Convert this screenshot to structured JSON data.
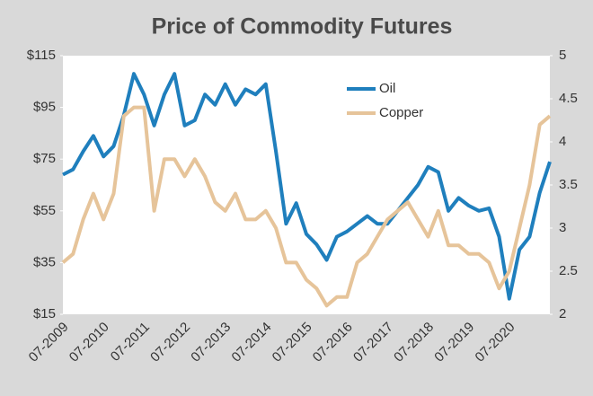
{
  "chart_data": {
    "type": "line",
    "title": "Price of Commodity Futures",
    "categories": [
      "07-2009",
      null,
      null,
      null,
      "07-2010",
      null,
      null,
      null,
      "07-2011",
      null,
      null,
      null,
      "07-2012",
      null,
      null,
      null,
      "07-2013",
      null,
      null,
      null,
      "07-2014",
      null,
      null,
      null,
      "07-2015",
      null,
      null,
      null,
      "07-2016",
      null,
      null,
      null,
      "07-2017",
      null,
      null,
      null,
      "07-2018",
      null,
      null,
      null,
      "07-2019",
      null,
      null,
      null,
      "07-2020",
      null,
      null,
      null,
      null
    ],
    "series": [
      {
        "name": "Oil",
        "color": "#1f7fbd",
        "axis": "y",
        "values": [
          69,
          71,
          78,
          84,
          76,
          80,
          92,
          108,
          100,
          88,
          100,
          108,
          88,
          90,
          100,
          96,
          104,
          96,
          102,
          100,
          104,
          78,
          50,
          58,
          46,
          42,
          36,
          45,
          47,
          50,
          53,
          50,
          50,
          55,
          60,
          65,
          72,
          70,
          55,
          60,
          57,
          55,
          56,
          45,
          21,
          40,
          45,
          62,
          74
        ]
      },
      {
        "name": "Copper",
        "color": "#e6c49a",
        "axis": "y2",
        "values": [
          2.6,
          2.7,
          3.1,
          3.4,
          3.1,
          3.4,
          4.3,
          4.4,
          4.4,
          3.2,
          3.8,
          3.8,
          3.6,
          3.8,
          3.6,
          3.3,
          3.2,
          3.4,
          3.1,
          3.1,
          3.2,
          3.0,
          2.6,
          2.6,
          2.4,
          2.3,
          2.1,
          2.2,
          2.2,
          2.6,
          2.7,
          2.9,
          3.1,
          3.2,
          3.3,
          3.1,
          2.9,
          3.2,
          2.8,
          2.8,
          2.7,
          2.7,
          2.6,
          2.3,
          2.5,
          3.0,
          3.5,
          4.2,
          4.3
        ]
      }
    ],
    "ylim": [
      15,
      115
    ],
    "yticks": [
      {
        "value": 15,
        "label": "$15"
      },
      {
        "value": 35,
        "label": "$35"
      },
      {
        "value": 55,
        "label": "$55"
      },
      {
        "value": 75,
        "label": "$75"
      },
      {
        "value": 95,
        "label": "$95"
      },
      {
        "value": 115,
        "label": "$115"
      }
    ],
    "y2lim": [
      2,
      5
    ],
    "y2ticks": [
      2,
      2.5,
      3,
      3.5,
      4,
      4.5,
      5
    ],
    "legend": "top"
  }
}
